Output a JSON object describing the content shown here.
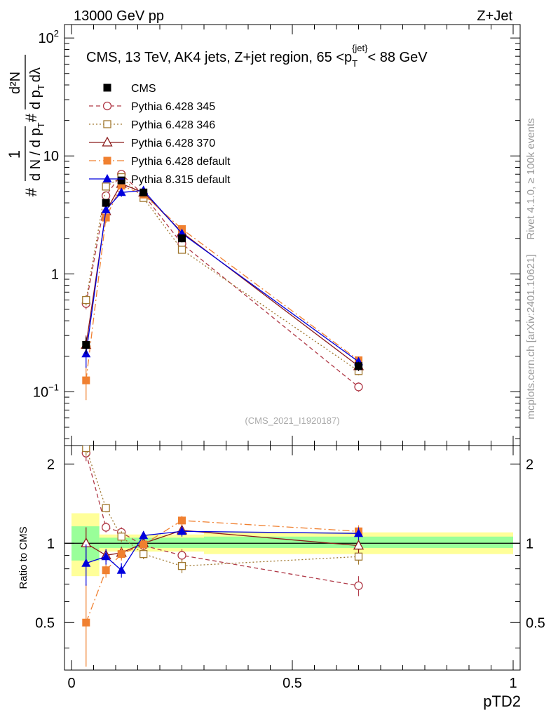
{
  "header": {
    "left": "13000 GeV pp",
    "right": "Z+Jet",
    "side_top": "Rivet 4.1.0, ≥ 100k events",
    "side_bottom": "mcplots.cern.ch [arXiv:2401.10621]",
    "analysis_tag": "(CMS_2021_I1920187)"
  },
  "title": {
    "main": "CMS, 13 TeV, AK4 jets, Z+jet region, 65 <p",
    "sub": "T",
    "sup": "{jet}",
    "tail": "< 88 GeV"
  },
  "axes": {
    "ylabel_main": {
      "prefix": "#",
      "frac_num": "1",
      "frac_den": "d N / d p",
      "frac_den_sub": "T",
      "mid": "#",
      "frac2_num": "d²N",
      "frac2_den": "d p",
      "frac2_den_sub": "T",
      "frac2_den_tail": "dλ"
    },
    "ylabel_ratio": "Ratio to CMS",
    "xlabel": "pTD2",
    "main_ticks": [
      {
        "value": 0.1,
        "base": "10",
        "exp": "−1"
      },
      {
        "value": 1,
        "base": "1",
        "exp": ""
      },
      {
        "value": 10,
        "base": "10",
        "exp": ""
      },
      {
        "value": 100,
        "base": "10",
        "exp": "2"
      }
    ],
    "ratio_ticks": [
      "0.5",
      "1",
      "2"
    ],
    "x_ticks": [
      "0",
      "0.5",
      "1"
    ]
  },
  "legend": [
    {
      "label": "CMS",
      "color": "#000000",
      "marker": "square-filled",
      "dash": ""
    },
    {
      "label": "Pythia 6.428 345",
      "color": "#b03a48",
      "marker": "circle-open",
      "dash": "6,4"
    },
    {
      "label": "Pythia 6.428 346",
      "color": "#a07830",
      "marker": "square-open",
      "dash": "2,3"
    },
    {
      "label": "Pythia 6.428 370",
      "color": "#8b1a1a",
      "marker": "triangle-open",
      "dash": ""
    },
    {
      "label": "Pythia 6.428 default",
      "color": "#f08030",
      "marker": "square-filled",
      "dash": "10,4,2,4"
    },
    {
      "label": "Pythia 8.315 default",
      "color": "#0000dd",
      "marker": "triangle-filled",
      "dash": ""
    }
  ],
  "chart_data": {
    "type": "line",
    "x_range": [
      0,
      1
    ],
    "main_y_range": [
      0.035,
      130
    ],
    "main_y_scale": "log",
    "ratio_y_range": [
      0.33,
      2.35
    ],
    "ratio_y_scale": "log",
    "x": [
      0.033,
      0.078,
      0.113,
      0.163,
      0.25,
      0.65
    ],
    "data": {
      "name": "CMS",
      "values": [
        0.25,
        4.0,
        6.2,
        4.9,
        2.0,
        0.165
      ],
      "errors": [
        0.04,
        0.3,
        0.4,
        0.3,
        0.15,
        0.015
      ]
    },
    "mc_series": [
      {
        "name": "Pythia 6.428 345",
        "values": [
          0.56,
          4.6,
          7.0,
          4.7,
          1.8,
          0.11
        ],
        "errors": [
          0.06,
          0.3,
          0.4,
          0.3,
          0.12,
          0.01
        ],
        "ratio": [
          2.2,
          1.15,
          1.1,
          0.98,
          0.9,
          0.69
        ],
        "ratio_err": [
          0.15,
          0.05,
          0.05,
          0.04,
          0.05,
          0.06
        ]
      },
      {
        "name": "Pythia 6.428 346",
        "values": [
          0.6,
          5.5,
          6.6,
          4.4,
          1.6,
          0.15
        ],
        "errors": [
          0.06,
          0.3,
          0.4,
          0.3,
          0.1,
          0.012
        ],
        "ratio": [
          2.3,
          1.36,
          1.06,
          0.91,
          0.82,
          0.89
        ],
        "ratio_err": [
          0.15,
          0.05,
          0.05,
          0.04,
          0.05,
          0.06
        ]
      },
      {
        "name": "Pythia 6.428 370",
        "values": [
          0.25,
          3.4,
          5.8,
          4.9,
          2.25,
          0.165
        ],
        "errors": [
          0.05,
          0.3,
          0.4,
          0.3,
          0.12,
          0.012
        ],
        "ratio": [
          1.0,
          0.9,
          0.92,
          1.0,
          1.12,
          0.98
        ],
        "ratio_err": [
          0.15,
          0.05,
          0.05,
          0.04,
          0.05,
          0.06
        ]
      },
      {
        "name": "Pythia 6.428 default",
        "values": [
          0.125,
          3.0,
          5.6,
          4.7,
          2.4,
          0.185
        ],
        "errors": [
          0.04,
          0.3,
          0.4,
          0.3,
          0.12,
          0.012
        ],
        "ratio": [
          0.5,
          0.79,
          0.91,
          0.99,
          1.22,
          1.11
        ],
        "ratio_err": [
          0.2,
          0.05,
          0.05,
          0.04,
          0.05,
          0.06
        ]
      },
      {
        "name": "Pythia 8.315 default",
        "values": [
          0.21,
          3.5,
          4.9,
          5.1,
          2.2,
          0.18
        ],
        "errors": [
          0.05,
          0.3,
          0.4,
          0.3,
          0.12,
          0.012
        ],
        "ratio": [
          0.84,
          0.89,
          0.79,
          1.07,
          1.11,
          1.09
        ],
        "ratio_err": [
          0.15,
          0.06,
          0.05,
          0.04,
          0.05,
          0.06
        ]
      }
    ],
    "uncertainty_bands": [
      {
        "x_low": 0.0,
        "x_high": 0.063,
        "inner": [
          0.86,
          1.16
        ],
        "outer": [
          0.75,
          1.3
        ]
      },
      {
        "x_low": 0.063,
        "x_high": 0.3,
        "inner": [
          0.96,
          1.05
        ],
        "outer": [
          0.93,
          1.08
        ]
      },
      {
        "x_low": 0.3,
        "x_high": 1.0,
        "inner": [
          0.96,
          1.06
        ],
        "outer": [
          0.91,
          1.1
        ]
      }
    ]
  }
}
